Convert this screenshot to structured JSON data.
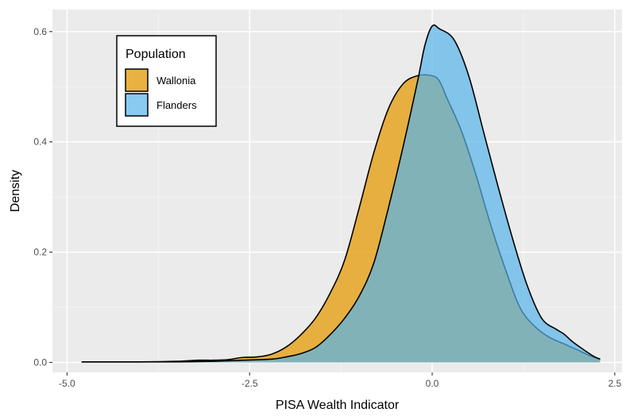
{
  "chart_data": {
    "type": "area",
    "subtype": "density",
    "title": "",
    "xlabel": "PISA Wealth Indicator",
    "ylabel": "Density",
    "xlim": [
      -5.2,
      2.6
    ],
    "ylim": [
      -0.018,
      0.64
    ],
    "x_ticks": [
      -5.0,
      -2.5,
      0.0,
      2.5
    ],
    "x_tick_labels": [
      "-5.0",
      "-2.5",
      "0.0",
      "2.5"
    ],
    "y_ticks": [
      0.0,
      0.2,
      0.4,
      0.6
    ],
    "y_tick_labels": [
      "0.0",
      "0.2",
      "0.4",
      "0.6"
    ],
    "grid": true,
    "legend": {
      "title": "Population",
      "position": "top-left"
    },
    "series": [
      {
        "name": "Wallonia",
        "color": "#e6a92e",
        "opacity": 0.9,
        "x": [
          -4.8,
          -4.0,
          -3.5,
          -3.2,
          -3.0,
          -2.8,
          -2.6,
          -2.4,
          -2.2,
          -2.0,
          -1.8,
          -1.6,
          -1.4,
          -1.2,
          -1.0,
          -0.8,
          -0.6,
          -0.4,
          -0.2,
          0.0,
          0.1,
          0.2,
          0.4,
          0.6,
          0.8,
          1.0,
          1.2,
          1.4,
          1.6,
          1.8,
          2.0,
          2.2,
          2.3
        ],
        "values": [
          0.001,
          0.001,
          0.002,
          0.004,
          0.004,
          0.005,
          0.009,
          0.01,
          0.015,
          0.028,
          0.05,
          0.08,
          0.125,
          0.185,
          0.28,
          0.38,
          0.46,
          0.505,
          0.52,
          0.52,
          0.51,
          0.48,
          0.42,
          0.34,
          0.25,
          0.17,
          0.1,
          0.066,
          0.046,
          0.034,
          0.022,
          0.01,
          0.006
        ]
      },
      {
        "name": "Flanders",
        "color": "#56b4e9",
        "opacity": 0.7,
        "x": [
          -4.8,
          -4.0,
          -3.5,
          -3.0,
          -2.6,
          -2.2,
          -2.0,
          -1.8,
          -1.6,
          -1.4,
          -1.2,
          -1.0,
          -0.8,
          -0.6,
          -0.4,
          -0.2,
          -0.1,
          0.0,
          0.1,
          0.3,
          0.5,
          0.7,
          0.9,
          1.1,
          1.3,
          1.5,
          1.7,
          1.8,
          1.9,
          2.0,
          2.2,
          2.3
        ],
        "values": [
          0.001,
          0.001,
          0.001,
          0.002,
          0.004,
          0.006,
          0.01,
          0.016,
          0.027,
          0.05,
          0.08,
          0.12,
          0.18,
          0.28,
          0.39,
          0.51,
          0.575,
          0.61,
          0.605,
          0.585,
          0.52,
          0.42,
          0.32,
          0.225,
          0.14,
          0.08,
          0.06,
          0.052,
          0.04,
          0.03,
          0.012,
          0.006
        ]
      }
    ]
  }
}
